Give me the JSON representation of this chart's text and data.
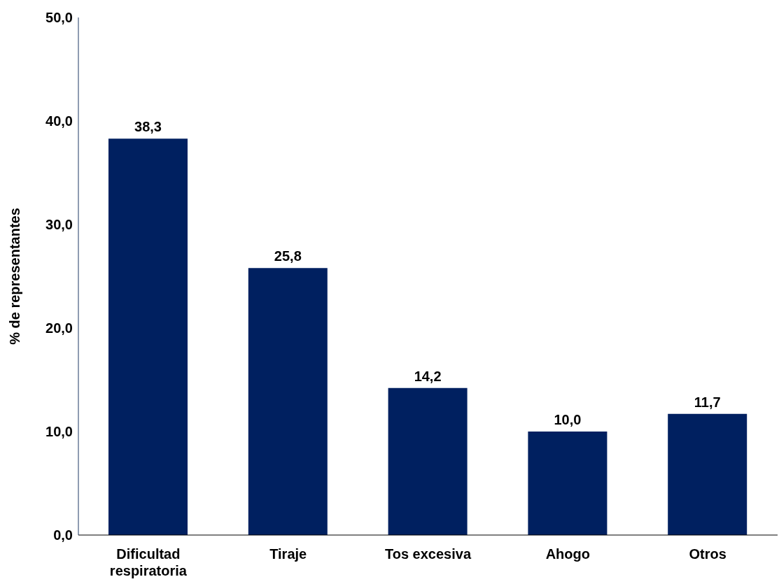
{
  "chart_data": {
    "type": "bar",
    "ylabel": "% de representantes",
    "categories": [
      "Dificultad respiratoria",
      "Tiraje",
      "Tos excesiva",
      "Ahogo",
      "Otros"
    ],
    "values": [
      38.3,
      25.8,
      14.2,
      10.0,
      11.7
    ],
    "value_labels": [
      "38,3",
      "25,8",
      "14,2",
      "10,0",
      "11,7"
    ],
    "color": "#002060",
    "ylim": [
      0,
      50
    ],
    "yticks": [
      {
        "value": 0,
        "label": "0,0"
      },
      {
        "value": 10,
        "label": "10,0"
      },
      {
        "value": 20,
        "label": "20,0"
      },
      {
        "value": 30,
        "label": "30,0"
      },
      {
        "value": 40,
        "label": "40,0"
      },
      {
        "value": 50,
        "label": "50,0"
      }
    ],
    "grid": false,
    "legend": false
  }
}
